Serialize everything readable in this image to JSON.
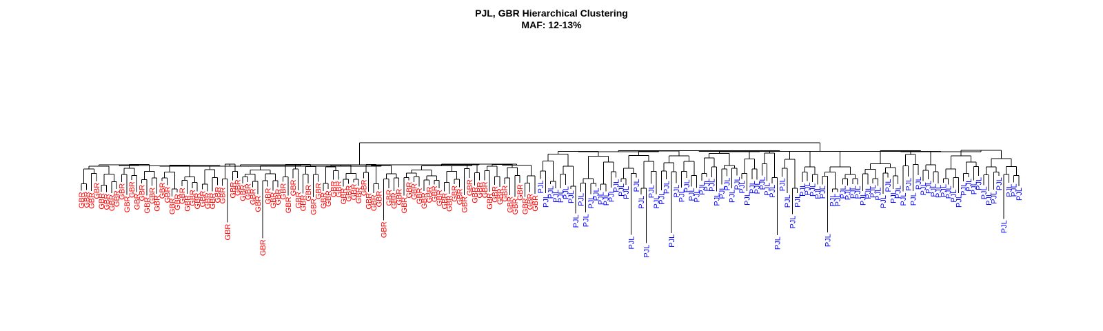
{
  "title": "PJL, GBR Hierarchical Clustering",
  "subtitle": "MAF: 12-13%",
  "groups": [
    {
      "label": "GBR",
      "color": "#ff0000",
      "count": 91
    },
    {
      "label": "PJL",
      "color": "#0000ff",
      "count": 96
    }
  ]
}
